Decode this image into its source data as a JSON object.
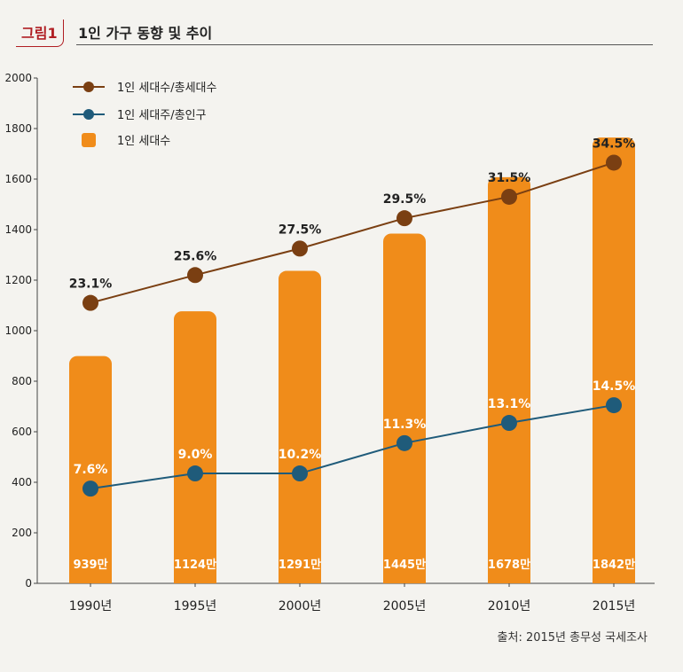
{
  "header": {
    "tag": "그림1",
    "title": "1인 가구 동향 및 추이"
  },
  "source": "출처: 2015년 총무성 국세조사",
  "colors": {
    "bar": "#f08c1a",
    "line_households": "#7a3f12",
    "line_population": "#1f5b7a",
    "background": "#f4f3ef",
    "title_accent": "#b01e23"
  },
  "chart_data": {
    "type": "bar",
    "categories": [
      "1990년",
      "1995년",
      "2000년",
      "2005년",
      "2010년",
      "2015년"
    ],
    "ylim": [
      0,
      2000
    ],
    "yticks": [
      0,
      200,
      400,
      600,
      800,
      1000,
      1200,
      1400,
      1600,
      1800,
      2000
    ],
    "series": [
      {
        "name": "1인 세대수",
        "kind": "bar",
        "values": [
          939,
          1124,
          1291,
          1445,
          1678,
          1842
        ],
        "labels": [
          "939만",
          "1124만",
          "1291만",
          "1445만",
          "1678만",
          "1842만"
        ]
      },
      {
        "name": "1인 세대수/총세대수",
        "kind": "line",
        "values": [
          1110,
          1220,
          1325,
          1445,
          1530,
          1665
        ],
        "labels": [
          "23.1%",
          "25.6%",
          "27.5%",
          "29.5%",
          "31.5%",
          "34.5%"
        ]
      },
      {
        "name": "1인 세대주/총인구",
        "kind": "line",
        "values": [
          375,
          435,
          435,
          555,
          635,
          705
        ],
        "labels": [
          "7.6%",
          "9.0%",
          "10.2%",
          "11.3%",
          "13.1%",
          "14.5%"
        ]
      }
    ],
    "legend": [
      "1인 세대수/총세대수",
      "1인 세대주/총인구",
      "1인 세대수"
    ],
    "legend_position": "top-left",
    "xlabel": "",
    "ylabel": ""
  }
}
